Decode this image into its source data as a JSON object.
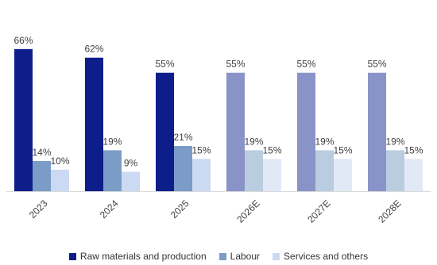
{
  "chart_data": {
    "type": "bar",
    "categories": [
      "2023",
      "2024",
      "2025",
      "2026E",
      "2027E",
      "2028E"
    ],
    "series": [
      {
        "name": "Raw materials and production",
        "values": [
          66,
          62,
          55,
          55,
          55,
          55
        ],
        "labels": [
          "66%",
          "62%",
          "55%",
          "55%",
          "55%",
          "55%"
        ]
      },
      {
        "name": "Labour",
        "values": [
          14,
          19,
          21,
          19,
          19,
          19
        ],
        "labels": [
          "14%",
          "19%",
          "21%",
          "19%",
          "19%",
          "19%"
        ]
      },
      {
        "name": "Services and others",
        "values": [
          10,
          9,
          15,
          15,
          15,
          15
        ],
        "labels": [
          "10%",
          "9%",
          "15%",
          "15%",
          "15%",
          "15%"
        ]
      }
    ],
    "colors": {
      "actual": [
        "#0d1d8a",
        "#7a9cc6",
        "#cbd9f2"
      ],
      "estimate": [
        "#8a93c8",
        "#b9cce0",
        "#e1e9f6"
      ]
    },
    "ylim": [
      0,
      70
    ],
    "grid": false,
    "legend_position": "bottom"
  }
}
